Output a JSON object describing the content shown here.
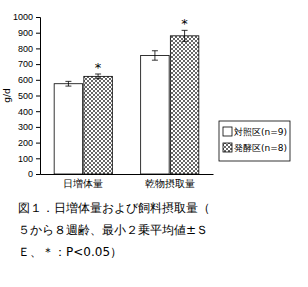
{
  "chart_data": {
    "type": "bar",
    "title": "図１．日増体量および飼料摂取量（５から８週齢、最小２乗平均値±ＳＥ、＊：P<0.05）",
    "y_label": "g/d",
    "categories": [
      "日増体量",
      "乾物摂取量"
    ],
    "series": [
      {
        "name": "対照区(n=9)",
        "color": "#ffffff",
        "values": [
          575,
          755
        ],
        "errors": [
          15,
          30
        ]
      },
      {
        "name": "発酵区(n=8)",
        "color": "#404040",
        "values": [
          622,
          880
        ],
        "errors": [
          15,
          35
        ],
        "annotations": [
          "*",
          "*"
        ]
      }
    ],
    "ylim": [
      0,
      1000
    ],
    "yticks": [
      0,
      100,
      200,
      300,
      400,
      500,
      600,
      700,
      800,
      900,
      1000
    ],
    "grid": false,
    "legend": "right"
  }
}
